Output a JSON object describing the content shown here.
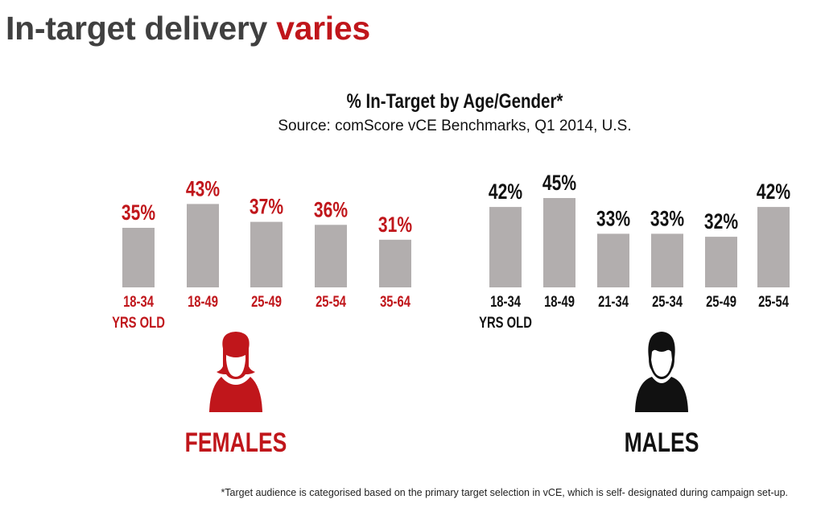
{
  "headline": {
    "text": "In-target delivery ",
    "accent": "varies"
  },
  "colors": {
    "accent": "#c0161b",
    "bar": "#b2aeae",
    "male": "#111111",
    "headline": "#404040"
  },
  "chart_data": [
    {
      "type": "bar",
      "title": "% In-Target by Age/Gender*",
      "subtitle": "Source: comScore vCE Benchmarks, Q1 2014, U.S.",
      "group": "FEMALES",
      "categories": [
        "18-34",
        "18-49",
        "25-49",
        "25-54",
        "35-64"
      ],
      "category_note": "YRS OLD",
      "values": [
        35,
        43,
        37,
        36,
        31
      ],
      "value_labels": [
        "35%",
        "43%",
        "37%",
        "36%",
        "31%"
      ],
      "label_color": "#c0161b",
      "icon": "female-avatar-icon"
    },
    {
      "type": "bar",
      "group": "MALES",
      "categories": [
        "18-34",
        "18-49",
        "21-34",
        "25-34",
        "25-49",
        "25-54"
      ],
      "category_note": "YRS OLD",
      "values": [
        42,
        45,
        33,
        33,
        32,
        42
      ],
      "value_labels": [
        "42%",
        "45%",
        "33%",
        "33%",
        "32%",
        "42%"
      ],
      "label_color": "#111111",
      "icon": "male-avatar-icon"
    }
  ],
  "footnote": "*Target audience is categorised based on the primary target selection in vCE, which is self- designated during campaign set-up."
}
